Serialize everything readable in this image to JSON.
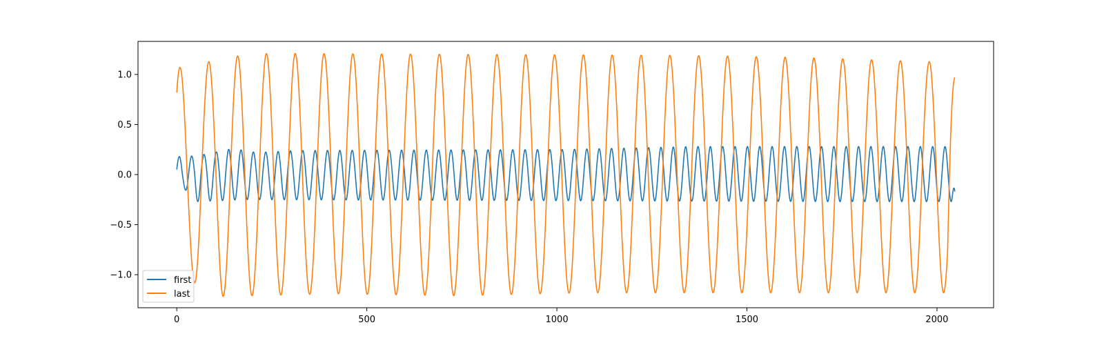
{
  "chart_data": {
    "type": "line",
    "title": "",
    "xlabel": "",
    "ylabel": "",
    "xlim": [
      -102,
      2149
    ],
    "ylim": [
      -1.33,
      1.33
    ],
    "grid": false,
    "legend_position": "lower-left",
    "x_ticks": [
      0,
      500,
      1000,
      1500,
      2000
    ],
    "x_tick_labels": [
      "0",
      "500",
      "1000",
      "1500",
      "2000"
    ],
    "y_ticks": [
      1.0,
      0.5,
      0.0,
      -0.5,
      -1.0
    ],
    "y_tick_labels": [
      "1.0",
      "0.5",
      "0.0",
      "−0.5",
      "−1.0"
    ],
    "x_range": [
      0,
      2047
    ],
    "series": [
      {
        "name": "first",
        "color": "#1f77b4",
        "start_value": 0.05,
        "end_value": -0.17,
        "cycles": 63,
        "amplitude_range": [
          0.15,
          0.28
        ],
        "peaks": [
          [
            28,
            0.18
          ],
          [
            70,
            0.2
          ],
          [
            148,
            0.26
          ],
          [
            210,
            0.22
          ],
          [
            318,
            0.24
          ],
          [
            1018,
            0.25
          ],
          [
            1362,
            0.28
          ]
        ],
        "troughs": [
          [
            10,
            -0.1
          ],
          [
            50,
            -0.27
          ],
          [
            180,
            -0.25
          ],
          [
            1760,
            -0.27
          ]
        ]
      },
      {
        "name": "last",
        "color": "#ff7f0e",
        "start_value": 0.82,
        "end_value": 0.97,
        "cycles": 27,
        "amplitude_range": [
          1.0,
          1.21
        ],
        "peaks": [
          [
            10,
            1.07
          ],
          [
            168,
            1.19
          ],
          [
            245,
            1.21
          ],
          [
            1322,
            1.19
          ],
          [
            1635,
            1.17
          ],
          [
            2038,
            1.12
          ]
        ],
        "troughs": [
          [
            32,
            -1.0
          ],
          [
            72,
            -1.22
          ],
          [
            420,
            -1.19
          ],
          [
            740,
            -1.21
          ],
          [
            1070,
            -1.18
          ],
          [
            1748,
            -1.18
          ]
        ]
      }
    ]
  }
}
